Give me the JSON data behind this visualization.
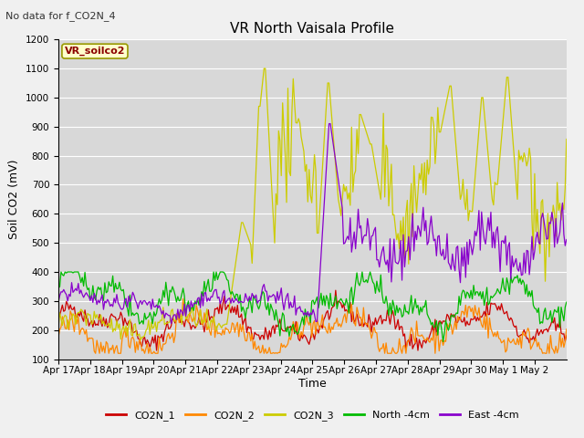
{
  "title": "VR North Vaisala Profile",
  "top_left_text": "No data for f_CO2N_4",
  "box_label": "VR_soilco2",
  "ylabel": "Soil CO2 (mV)",
  "xlabel": "Time",
  "ylim": [
    100,
    1200
  ],
  "fig_bg_color": "#f0f0f0",
  "plot_bg_color": "#d8d8d8",
  "series_colors": {
    "CO2N_1": "#cc0000",
    "CO2N_2": "#ff8800",
    "CO2N_3": "#cccc00",
    "North_4cm": "#00bb00",
    "East_4cm": "#8800cc"
  },
  "legend_labels": [
    "CO2N_1",
    "CO2N_2",
    "CO2N_3",
    "North -4cm",
    "East -4cm"
  ],
  "tick_labels": [
    "Apr 17",
    "Apr 18",
    "Apr 19",
    "Apr 20",
    "Apr 21",
    "Apr 22",
    "Apr 23",
    "Apr 24",
    "Apr 25",
    "Apr 26",
    "Apr 27",
    "Apr 28",
    "Apr 29",
    "Apr 30",
    "May 1",
    "May 2"
  ]
}
